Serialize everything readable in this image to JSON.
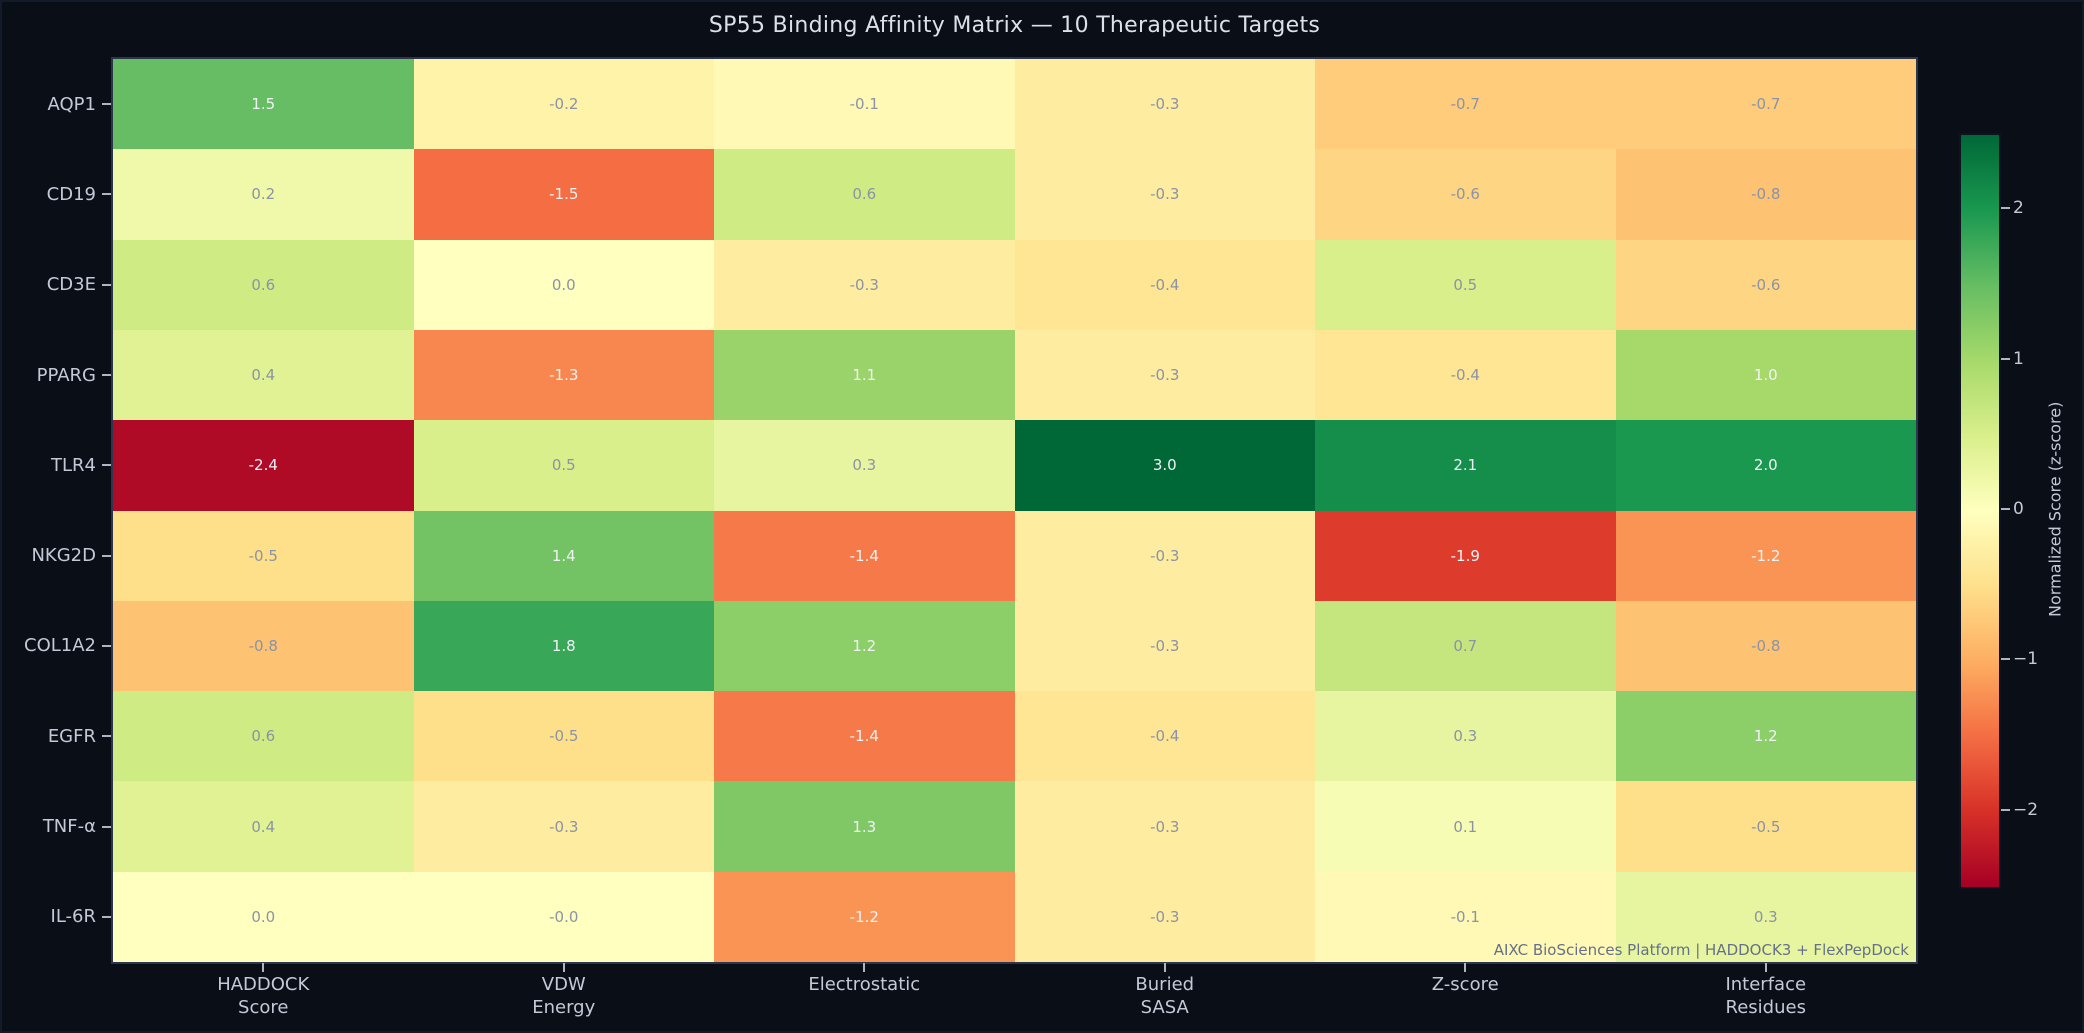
{
  "title": "SP55 Binding Affinity Matrix — 10 Therapeutic Targets",
  "watermark": "AIXC BioSciences Platform  |  HADDOCK3 + FlexPepDock",
  "colors": {
    "background": "#0a0e17",
    "title_text": "#dce1e9",
    "axis_text": "#c3cad6",
    "value_text_light": "#f0f3f6",
    "value_text_muted": "#8b93a5",
    "watermark_text": "#64708a",
    "spine": "#2b364e"
  },
  "chart_data": {
    "type": "heatmap",
    "title": "SP55 Binding Affinity Matrix — 10 Therapeutic Targets",
    "rows": [
      "AQP1",
      "CD19",
      "CD3E",
      "PPARG",
      "TLR4",
      "NKG2D",
      "COL1A2",
      "EGFR",
      "TNF-α",
      "IL-6R"
    ],
    "columns": [
      [
        "HADDOCK",
        "Score"
      ],
      [
        "VDW",
        "Energy"
      ],
      [
        "Electrostatic"
      ],
      [
        "Buried",
        "SASA"
      ],
      [
        "Z-score"
      ],
      [
        "Interface",
        "Residues"
      ]
    ],
    "values": [
      [
        1.5,
        -0.2,
        -0.1,
        -0.3,
        -0.7,
        -0.7
      ],
      [
        0.2,
        -1.5,
        0.6,
        -0.3,
        -0.6,
        -0.8
      ],
      [
        0.6,
        0.0,
        -0.3,
        -0.4,
        0.5,
        -0.6
      ],
      [
        0.4,
        -1.3,
        1.1,
        -0.3,
        -0.4,
        1.0
      ],
      [
        -2.4,
        0.5,
        0.3,
        3.0,
        2.1,
        2.0
      ],
      [
        -0.5,
        1.4,
        -1.4,
        -0.3,
        -1.9,
        -1.2
      ],
      [
        -0.8,
        1.8,
        1.2,
        -0.3,
        0.7,
        -0.8
      ],
      [
        0.6,
        -0.5,
        -1.4,
        -0.4,
        0.3,
        1.2
      ],
      [
        0.4,
        -0.3,
        1.3,
        -0.3,
        0.1,
        -0.5
      ],
      [
        0.0,
        -0.0,
        -1.2,
        -0.3,
        -0.1,
        0.3
      ]
    ],
    "labels": [
      [
        "1.5",
        "-0.2",
        "-0.1",
        "-0.3",
        "-0.7",
        "-0.7"
      ],
      [
        "0.2",
        "-1.5",
        "0.6",
        "-0.3",
        "-0.6",
        "-0.8"
      ],
      [
        "0.6",
        "0.0",
        "-0.3",
        "-0.4",
        "0.5",
        "-0.6"
      ],
      [
        "0.4",
        "-1.3",
        "1.1",
        "-0.3",
        "-0.4",
        "1.0"
      ],
      [
        "-2.4",
        "0.5",
        "0.3",
        "3.0",
        "2.1",
        "2.0"
      ],
      [
        "-0.5",
        "1.4",
        "-1.4",
        "-0.3",
        "-1.9",
        "-1.2"
      ],
      [
        "-0.8",
        "1.8",
        "1.2",
        "-0.3",
        "0.7",
        "-0.8"
      ],
      [
        "0.6",
        "-0.5",
        "-1.4",
        "-0.4",
        "0.3",
        "1.2"
      ],
      [
        "0.4",
        "-0.3",
        "1.3",
        "-0.3",
        "0.1",
        "-0.5"
      ],
      [
        "0.0",
        "-0.0",
        "-1.2",
        "-0.3",
        "-0.1",
        "0.3"
      ]
    ],
    "colorbar": {
      "label": "Normalized Score (z-score)",
      "ticks": [
        "2",
        "1",
        "0",
        "−1",
        "−2"
      ],
      "tick_values": [
        2,
        1,
        0,
        -1,
        -2
      ],
      "vmin": -2.5,
      "vmax": 2.5
    },
    "colormap": {
      "name": "RdYlGn",
      "anchors": [
        "#a50026",
        "#d73027",
        "#f46d43",
        "#fdae61",
        "#fee08b",
        "#ffffbf",
        "#d9ef8b",
        "#a6d96a",
        "#66bd63",
        "#1a9850",
        "#006837"
      ]
    },
    "legend_position": "right",
    "grid": false
  }
}
